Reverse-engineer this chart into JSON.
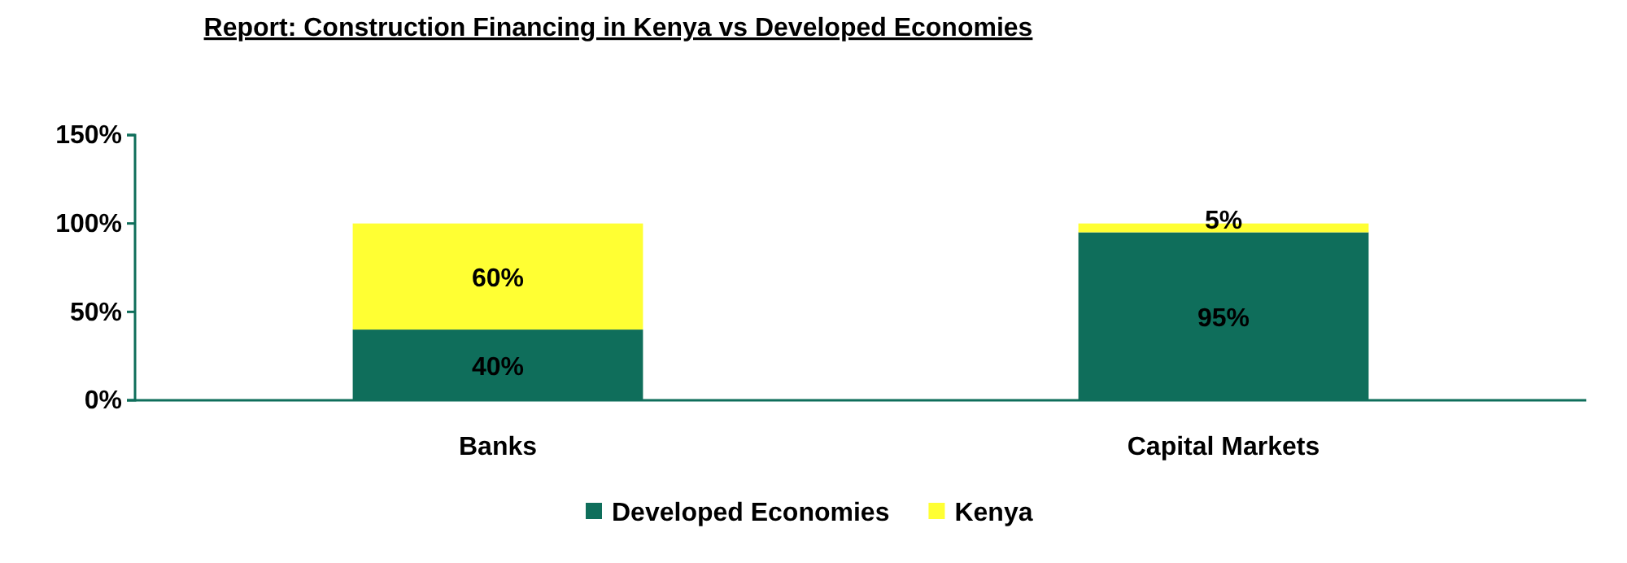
{
  "chart_data": {
    "type": "bar",
    "title": "Report: Construction Financing in Kenya vs Developed Economies",
    "categories": [
      "Banks",
      "Capital Markets"
    ],
    "stacked": true,
    "series": [
      {
        "name": "Developed Economies",
        "color": "#0f6e5b",
        "values": [
          40,
          95
        ],
        "value_labels": [
          "40%",
          "95%"
        ]
      },
      {
        "name": "Kenya",
        "color": "#ffff33",
        "values": [
          60,
          5
        ],
        "value_labels": [
          "60%",
          "5%"
        ]
      }
    ],
    "ylim": [
      0,
      150
    ],
    "yticks": [
      {
        "value": 0,
        "label": "0%"
      },
      {
        "value": 50,
        "label": "50%"
      },
      {
        "value": 100,
        "label": "100%"
      },
      {
        "value": 150,
        "label": "150%"
      }
    ],
    "grid": false,
    "legend": "bottom"
  }
}
